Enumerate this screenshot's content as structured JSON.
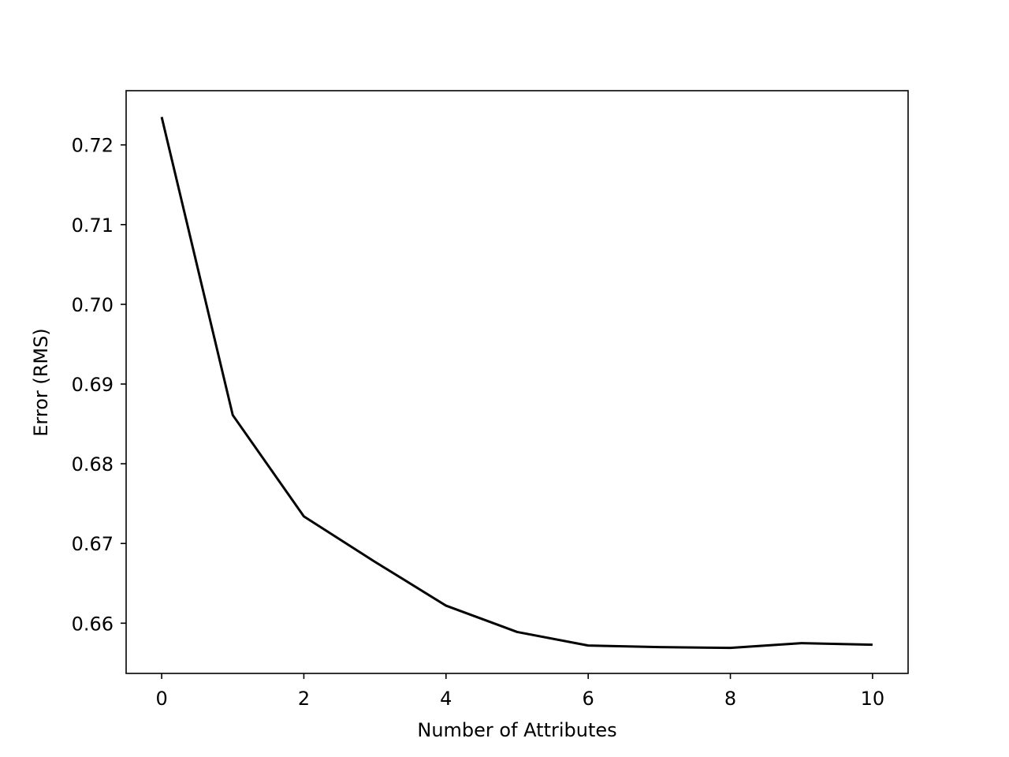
{
  "chart_data": {
    "type": "line",
    "title": "",
    "xlabel": "Number of Attributes",
    "ylabel": "Error (RMS)",
    "xlim": [
      -0.5,
      10.5
    ],
    "ylim": [
      0.6537,
      0.7268
    ],
    "grid": false,
    "legend": "none",
    "xticks": [
      0,
      2,
      4,
      6,
      8,
      10
    ],
    "yticks": [
      0.66,
      0.67,
      0.68,
      0.69,
      0.7,
      0.71,
      0.72
    ],
    "x": [
      0,
      1,
      2,
      3,
      4,
      5,
      6,
      7,
      8,
      9,
      10
    ],
    "series": [
      {
        "values": [
          0.7235,
          0.6861,
          0.6734,
          0.6677,
          0.6622,
          0.6589,
          0.6572,
          0.657,
          0.6569,
          0.6575,
          0.6573
        ],
        "color": "#000000"
      }
    ]
  }
}
